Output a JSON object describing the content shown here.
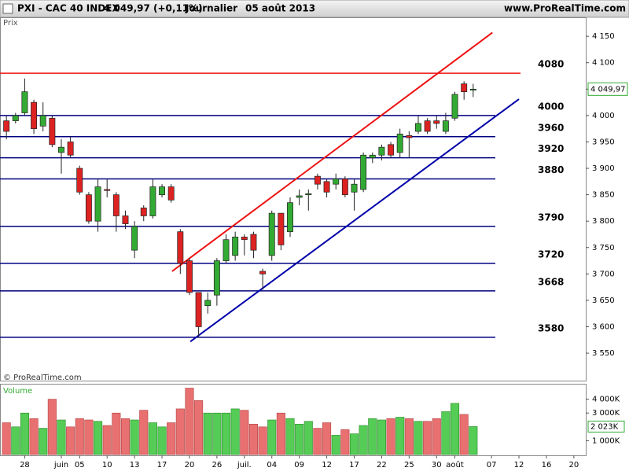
{
  "header": {
    "symbol": "PXI - CAC 40 INDEX",
    "quote": "4 049,97 (+0,11%)",
    "period": "Journalier",
    "date": "05 août 2013",
    "site": "www.ProRealTime.com"
  },
  "chart_data": {
    "type": "candlestick",
    "panel_label": "Prix",
    "copyright": "© ProRealTime.com",
    "up_color": "#33aa33",
    "down_color": "#dd2222",
    "open": [
      3990,
      3990,
      4005,
      4025,
      3980,
      3995,
      3930,
      3950,
      3900,
      3850,
      3800,
      3860,
      3850,
      3810,
      3745,
      3825,
      3810,
      3850,
      3865,
      3780,
      3725,
      3665,
      3640,
      3660,
      3725,
      3735,
      3770,
      3775,
      3705,
      3735,
      3815,
      3780,
      3845,
      3850,
      3885,
      3875,
      3870,
      3880,
      3855,
      3860,
      3920,
      3925,
      3945,
      3930,
      3962,
      3970,
      3990,
      3990,
      3970,
      3995,
      4060,
      4048
    ],
    "high": [
      4000,
      4005,
      4070,
      4030,
      4025,
      4000,
      3955,
      3960,
      3905,
      3855,
      3880,
      3880,
      3855,
      3820,
      3800,
      3830,
      3880,
      3870,
      3870,
      3785,
      3730,
      3665,
      3665,
      3730,
      3775,
      3780,
      3775,
      3780,
      3710,
      3820,
      3815,
      3845,
      3860,
      3860,
      3890,
      3880,
      3890,
      3885,
      3880,
      3930,
      3930,
      3945,
      3950,
      3975,
      3970,
      4000,
      3995,
      4000,
      4005,
      4045,
      4065,
      4060
    ],
    "low": [
      3955,
      3985,
      4000,
      3965,
      3970,
      3940,
      3890,
      3920,
      3850,
      3795,
      3780,
      3845,
      3780,
      3785,
      3730,
      3800,
      3805,
      3845,
      3835,
      3700,
      3660,
      3580,
      3625,
      3640,
      3720,
      3725,
      3735,
      3730,
      3670,
      3725,
      3745,
      3770,
      3830,
      3820,
      3860,
      3845,
      3860,
      3845,
      3820,
      3855,
      3910,
      3915,
      3920,
      3920,
      3920,
      3965,
      3965,
      3975,
      3965,
      3990,
      4030,
      4035
    ],
    "close": [
      3970,
      4000,
      4045,
      3975,
      4000,
      3945,
      3940,
      3925,
      3855,
      3800,
      3865,
      3858,
      3810,
      3795,
      3790,
      3810,
      3865,
      3865,
      3840,
      3720,
      3665,
      3600,
      3650,
      3725,
      3765,
      3770,
      3765,
      3745,
      3700,
      3815,
      3755,
      3835,
      3848,
      3852,
      3870,
      3855,
      3880,
      3850,
      3870,
      3925,
      3925,
      3940,
      3925,
      3965,
      3958,
      3985,
      3970,
      3985,
      3990,
      4040,
      4045,
      4049.97
    ],
    "last_label": "4 049,97",
    "xlim": [
      -0.7,
      63.3
    ],
    "xticks": [
      {
        "value": 2,
        "label": "28"
      },
      {
        "value": 6,
        "label": "juin"
      },
      {
        "value": 8,
        "label": "05"
      },
      {
        "value": 11,
        "label": "10"
      },
      {
        "value": 14,
        "label": "13"
      },
      {
        "value": 17,
        "label": "17"
      },
      {
        "value": 20,
        "label": "20"
      },
      {
        "value": 23,
        "label": "26"
      },
      {
        "value": 26,
        "label": "juil."
      },
      {
        "value": 29,
        "label": "04"
      },
      {
        "value": 32,
        "label": "09"
      },
      {
        "value": 35,
        "label": "12"
      },
      {
        "value": 38,
        "label": "17"
      },
      {
        "value": 41,
        "label": "22"
      },
      {
        "value": 44,
        "label": "25"
      },
      {
        "value": 47,
        "label": "30"
      },
      {
        "value": 49,
        "label": "août"
      },
      {
        "value": 53,
        "label": "07"
      },
      {
        "value": 56,
        "label": "12"
      },
      {
        "value": 59,
        "label": "16"
      },
      {
        "value": 62,
        "label": "20"
      }
    ],
    "ylim": [
      3498,
      4183
    ],
    "yticks": [
      {
        "value": 3550,
        "label": "3 550"
      },
      {
        "value": 3600,
        "label": "3 600"
      },
      {
        "value": 3650,
        "label": "3 650"
      },
      {
        "value": 3700,
        "label": "3 700"
      },
      {
        "value": 3750,
        "label": "3 750"
      },
      {
        "value": 3800,
        "label": "3 800"
      },
      {
        "value": 3850,
        "label": "3 850"
      },
      {
        "value": 3900,
        "label": "3 900"
      },
      {
        "value": 3950,
        "label": "3 950"
      },
      {
        "value": 4000,
        "label": "4 000"
      },
      {
        "value": 4050,
        "label": "4 050"
      },
      {
        "value": 4100,
        "label": "4 100"
      },
      {
        "value": 4150,
        "label": "4 150"
      }
    ],
    "levels": [
      {
        "value": 4080,
        "color": "#ee1111"
      },
      {
        "value": 4000,
        "color": "#000080"
      },
      {
        "value": 3960,
        "color": "#000080"
      },
      {
        "value": 3920,
        "color": "#000080"
      },
      {
        "value": 3880,
        "color": "#000080"
      },
      {
        "value": 3790,
        "color": "#000080"
      },
      {
        "value": 3720,
        "color": "#000080"
      },
      {
        "value": 3668,
        "color": "#000080"
      },
      {
        "value": 3580,
        "color": "#000080"
      }
    ],
    "trendlines": [
      {
        "color": "#ee1111",
        "x": [
          18.1,
          53.1
        ],
        "y": [
          3705,
          4157
        ]
      },
      {
        "color": "#0000aa",
        "x": [
          20.1,
          56.0
        ],
        "y": [
          3572,
          4031
        ]
      }
    ],
    "volume": {
      "label": "Volume",
      "up_color": "#55cc55",
      "down_color": "#e87070",
      "values": [
        2300,
        2000,
        3000,
        2600,
        1900,
        4000,
        2500,
        2000,
        2600,
        2500,
        2400,
        2100,
        3000,
        2600,
        2500,
        3200,
        2300,
        2000,
        2300,
        3300,
        4800,
        3900,
        3000,
        3000,
        3000,
        3300,
        3200,
        2200,
        2000,
        2500,
        3000,
        2600,
        2200,
        2400,
        1900,
        2300,
        1400,
        1800,
        1500,
        2100,
        2600,
        2500,
        2600,
        2700,
        2600,
        2400,
        2400,
        2600,
        3100,
        3700,
        2900,
        2023
      ],
      "last_label": "2 023K",
      "ylim": [
        0,
        5000
      ],
      "yticks": [
        {
          "value": 1000,
          "label": "1 000K"
        },
        {
          "value": 3000,
          "label": "3 000K"
        },
        {
          "value": 4000,
          "label": "4 000K"
        }
      ]
    }
  }
}
